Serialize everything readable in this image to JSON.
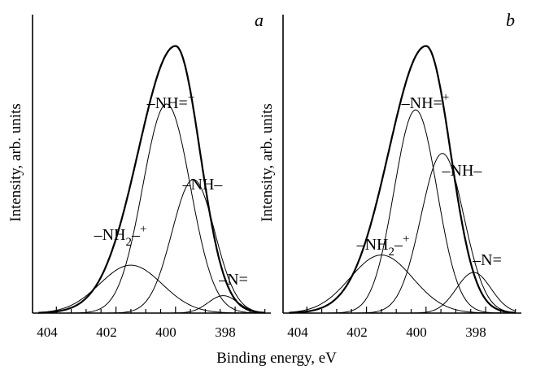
{
  "figure": {
    "xlabel": "Binding energy, eV"
  },
  "chart_data": [
    {
      "type": "line",
      "panel_label": "a",
      "xlabel": "",
      "ylabel": "Intensity, arb. units",
      "xlim": [
        404.8,
        396.8
      ],
      "x_reversed": true,
      "ylim": [
        0,
        1.0
      ],
      "xticks": [
        404,
        402,
        400,
        398
      ],
      "envelope": {
        "center": 400.0,
        "height": 0.92
      },
      "series": [
        {
          "name": "–NH2–+",
          "center": 401.5,
          "height": 0.165,
          "width": 1.05
        },
        {
          "name": "–NH=+",
          "center": 400.3,
          "height": 0.72,
          "width": 0.8
        },
        {
          "name": "–NH–",
          "center": 399.4,
          "height": 0.46,
          "width": 0.72
        },
        {
          "name": "–N=",
          "center": 398.4,
          "height": 0.06,
          "width": 0.5
        }
      ]
    },
    {
      "type": "line",
      "panel_label": "b",
      "xlabel": "",
      "ylabel": "Intensity, arb. units",
      "xlim": [
        404.8,
        396.8
      ],
      "x_reversed": true,
      "ylim": [
        0,
        1.0
      ],
      "xticks": [
        404,
        402,
        400,
        398
      ],
      "envelope": {
        "center": 400.0,
        "height": 0.92
      },
      "series": [
        {
          "name": "–NH2–+",
          "center": 401.5,
          "height": 0.2,
          "width": 1.05
        },
        {
          "name": "–NH=+",
          "center": 400.35,
          "height": 0.7,
          "width": 0.72
        },
        {
          "name": "–NH–",
          "center": 399.45,
          "height": 0.55,
          "width": 0.72
        },
        {
          "name": "–N=",
          "center": 398.4,
          "height": 0.14,
          "width": 0.58
        }
      ]
    }
  ]
}
